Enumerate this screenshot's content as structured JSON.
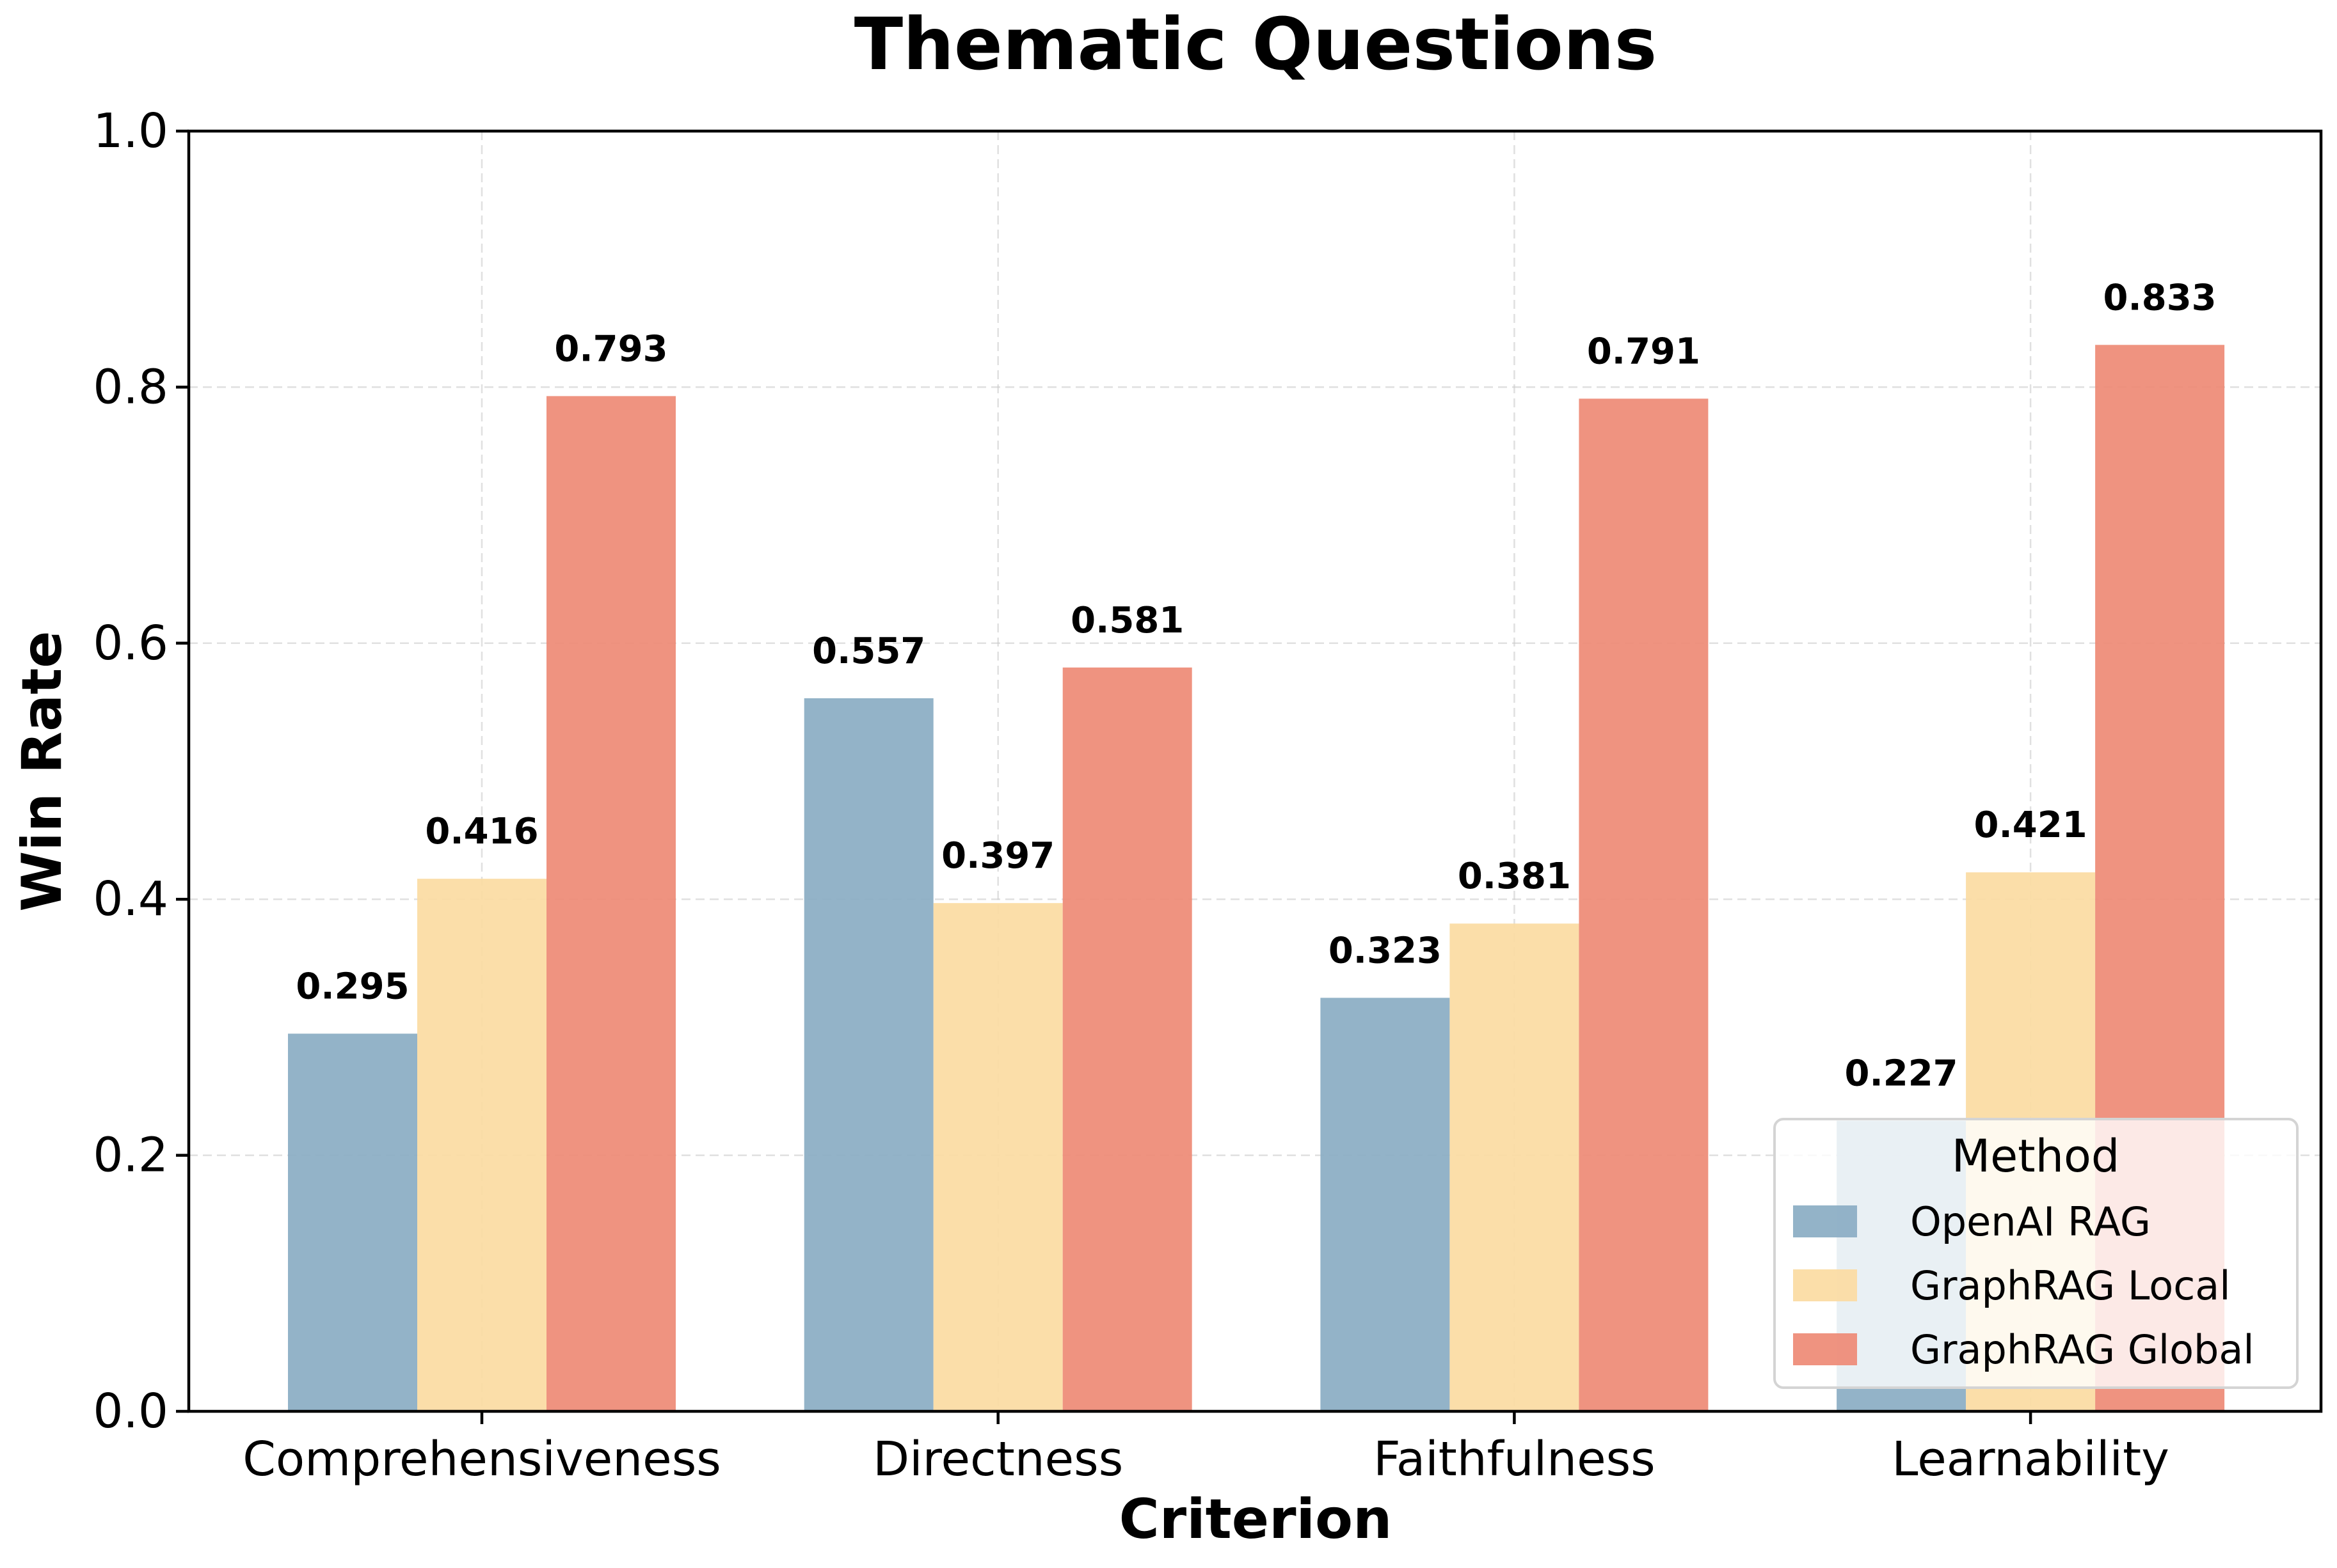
{
  "chart_data": {
    "type": "bar",
    "title": "Thematic Questions",
    "xlabel": "Criterion",
    "ylabel": "Win Rate",
    "ylim": [
      0,
      1.0
    ],
    "yticks": [
      "0.0",
      "0.2",
      "0.4",
      "0.6",
      "0.8",
      "1.0"
    ],
    "categories": [
      "Comprehensiveness",
      "Directness",
      "Faithfulness",
      "Learnability"
    ],
    "series": [
      {
        "name": "OpenAI RAG",
        "color": "#8AACC3",
        "values": [
          0.295,
          0.557,
          0.323,
          0.227
        ]
      },
      {
        "name": "GraphRAG Local",
        "color": "#FBDBA2",
        "values": [
          0.416,
          0.397,
          0.381,
          0.421
        ]
      },
      {
        "name": "GraphRAG Global",
        "color": "#EE8A75",
        "values": [
          0.793,
          0.581,
          0.791,
          0.833
        ]
      }
    ],
    "value_labels": [
      [
        "0.295",
        "0.557",
        "0.323",
        "0.227"
      ],
      [
        "0.416",
        "0.397",
        "0.381",
        "0.421"
      ],
      [
        "0.793",
        "0.581",
        "0.791",
        "0.833"
      ]
    ],
    "grid": true,
    "legend": {
      "title": "Method",
      "placement": "lower-right"
    }
  }
}
